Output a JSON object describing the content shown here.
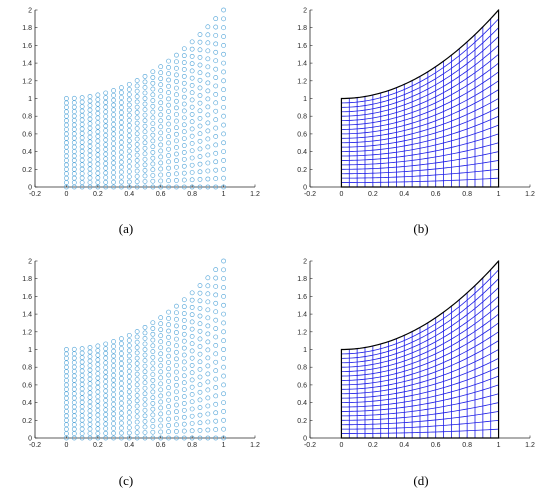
{
  "figure": {
    "captions": [
      "(a)",
      "(b)",
      "(c)",
      "(d)"
    ]
  },
  "colors": {
    "scatter": "#4fa3d8",
    "mesh": "#1f1fe6",
    "boundary": "#000000",
    "axis": "#262626"
  },
  "chart_data": [
    {
      "panel": "a",
      "type": "scatter",
      "title": "",
      "xlabel": "",
      "ylabel": "",
      "xlim": [
        -0.2,
        1.2
      ],
      "ylim": [
        0,
        2
      ],
      "xticks": [
        "-0.2",
        "0",
        "0.2",
        "0.4",
        "0.6",
        "0.8",
        "1",
        "1.2"
      ],
      "yticks": [
        "0",
        "0.2",
        "0.4",
        "0.6",
        "0.8",
        "1",
        "1.2",
        "1.4",
        "1.6",
        "1.8",
        "2"
      ],
      "grid": false,
      "domain": {
        "x_range": [
          0,
          1
        ],
        "lower": "y = 0",
        "upper": "y = 1 + x^2"
      },
      "nx": 21,
      "ny": 21,
      "marker": "open-circle"
    },
    {
      "panel": "b",
      "type": "mesh",
      "title": "",
      "xlabel": "",
      "ylabel": "",
      "xlim": [
        -0.2,
        1.2
      ],
      "ylim": [
        0,
        2
      ],
      "xticks": [
        "-0.2",
        "0",
        "0.2",
        "0.4",
        "0.6",
        "0.8",
        "1",
        "1.2"
      ],
      "yticks": [
        "0",
        "0.2",
        "0.4",
        "0.6",
        "0.8",
        "1",
        "1.2",
        "1.4",
        "1.6",
        "1.8",
        "2"
      ],
      "grid": false,
      "domain": {
        "x_range": [
          0,
          1
        ],
        "lower": "y = 0",
        "upper": "y = 1 + x^2"
      },
      "nx": 21,
      "ny": 21
    },
    {
      "panel": "c",
      "type": "scatter",
      "title": "",
      "xlabel": "",
      "ylabel": "",
      "xlim": [
        -0.2,
        1.2
      ],
      "ylim": [
        0,
        2
      ],
      "xticks": [
        "-0.2",
        "0",
        "0.2",
        "0.4",
        "0.6",
        "0.8",
        "1",
        "1.2"
      ],
      "yticks": [
        "0",
        "0.2",
        "0.4",
        "0.6",
        "0.8",
        "1",
        "1.2",
        "1.4",
        "1.6",
        "1.8",
        "2"
      ],
      "grid": false,
      "domain": {
        "x_range": [
          0,
          1
        ],
        "lower": "y = 0",
        "upper": "y = 1 + x^2"
      },
      "nx": 21,
      "ny": 21,
      "marker": "open-circle"
    },
    {
      "panel": "d",
      "type": "mesh",
      "title": "",
      "xlabel": "",
      "ylabel": "",
      "xlim": [
        -0.2,
        1.2
      ],
      "ylim": [
        0,
        2
      ],
      "xticks": [
        "-0.2",
        "0",
        "0.2",
        "0.4",
        "0.6",
        "0.8",
        "1",
        "1.2"
      ],
      "yticks": [
        "0",
        "0.2",
        "0.4",
        "0.6",
        "0.8",
        "1",
        "1.2",
        "1.4",
        "1.6",
        "1.8",
        "2"
      ],
      "grid": false,
      "domain": {
        "x_range": [
          0,
          1
        ],
        "lower": "y = 0",
        "upper": "y = 1 + x^2"
      },
      "nx": 21,
      "ny": 21
    }
  ]
}
